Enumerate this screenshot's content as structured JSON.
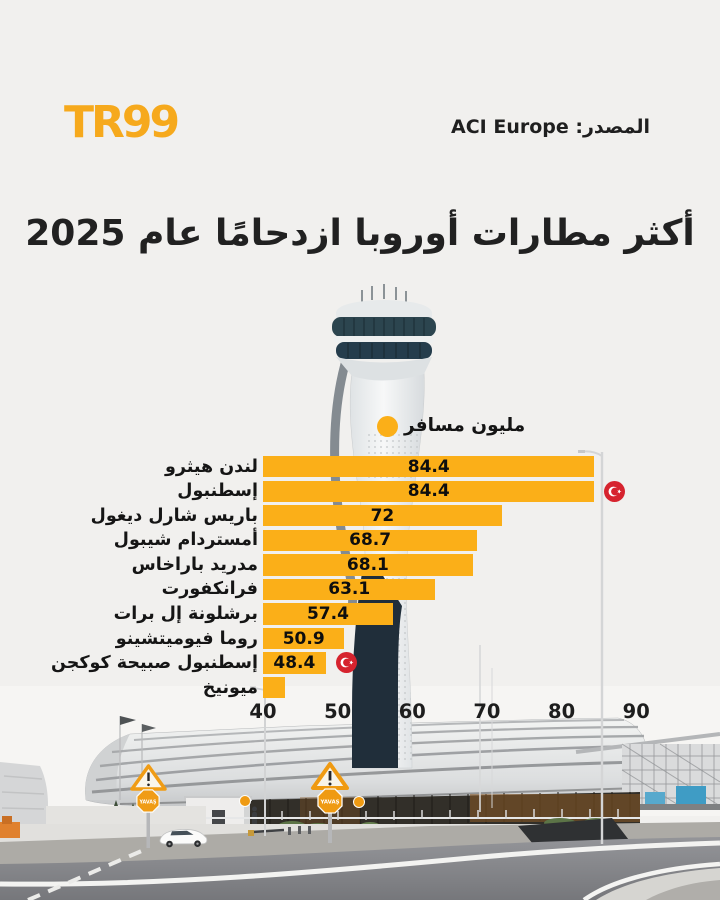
{
  "brand": {
    "logo_text": "TR99"
  },
  "header": {
    "source_text": "المصدر: ACI Europe"
  },
  "title": "أكثر مطارات أوروبا ازدحامًا عام 2025",
  "legend": {
    "label": "مليون مسافر"
  },
  "photo": {
    "sign_text": "YAVAŞ"
  },
  "colors": {
    "background": "#F1F0EE",
    "bar": "#FBAF18",
    "logo": "#F6A91C",
    "text": "#1F1F1F",
    "flag_red": "#D6232E"
  },
  "chart_data": {
    "type": "bar",
    "orientation": "horizontal",
    "title": "أكثر مطارات أوروبا ازدحامًا عام 2025",
    "unit_label": "مليون مسافر",
    "source": "ACI Europe",
    "xlim": [
      40,
      90
    ],
    "x_ticks": [
      40,
      50,
      60,
      70,
      80,
      90
    ],
    "grid": false,
    "rows": [
      {
        "label": "لندن هيثرو",
        "value": 84.4,
        "value_label": "84.4"
      },
      {
        "label": "إسطنبول",
        "value": 84.4,
        "value_label": "84.4",
        "flag": "turkey"
      },
      {
        "label": "باريس شارل ديغول",
        "value": 72,
        "value_label": "72"
      },
      {
        "label": "أمستردام شيبول",
        "value": 68.7,
        "value_label": "68.7"
      },
      {
        "label": "مدريد باراخاس",
        "value": 68.1,
        "value_label": "68.1"
      },
      {
        "label": "فرانكفورت",
        "value": 63.1,
        "value_label": "63.1"
      },
      {
        "label": "برشلونة إل برات",
        "value": 57.4,
        "value_label": "57.4"
      },
      {
        "label": "روما فيوميتشينو",
        "value": 50.9,
        "value_label": "50.9"
      },
      {
        "label": "إسطنبول صبيحة كوكجن",
        "value": 48.4,
        "value_label": "48.4",
        "flag": "turkey"
      },
      {
        "label": "ميونيخ",
        "value": 43,
        "value_label": ""
      }
    ]
  }
}
